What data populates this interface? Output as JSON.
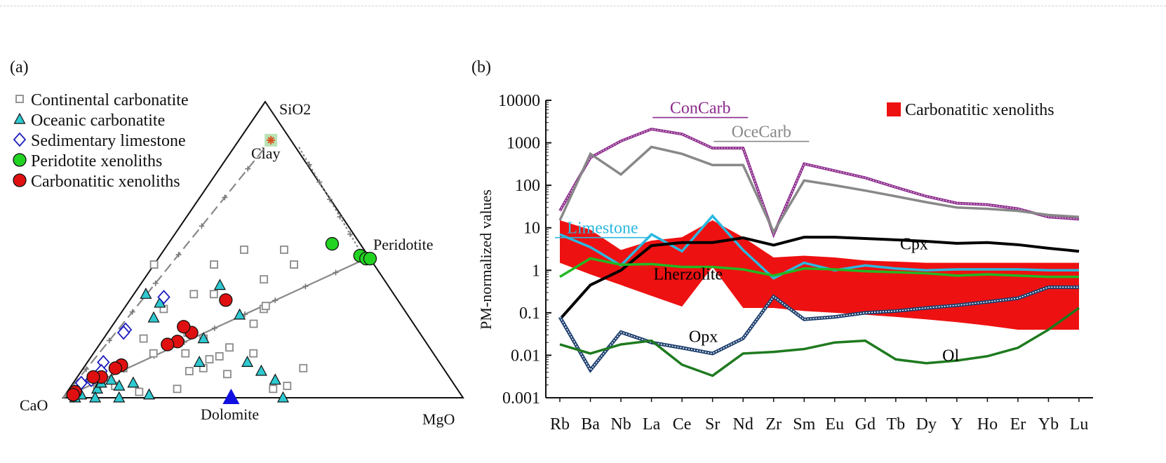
{
  "chart_data": [
    {
      "type": "scatter",
      "panel_label": "(a)",
      "apexes": {
        "top": "SiO2",
        "left": "CaO",
        "right": "MgO"
      },
      "vertex_labels": {
        "clay": "Clay",
        "peridotite": "Peridotite",
        "dolomite": "Dolomite"
      },
      "legend": [
        {
          "label": "Continental carbonatite",
          "marker": "square-open",
          "color": "#8a8a8a"
        },
        {
          "label": "Oceanic carbonatite",
          "marker": "triangle",
          "color": "#2ec9d1"
        },
        {
          "label": "Sedimentary limestone",
          "marker": "diamond-open",
          "color": "#1f1fbf"
        },
        {
          "label": "Peridotite xenoliths",
          "marker": "circle",
          "color": "#22d322"
        },
        {
          "label": "Carbonatitic xenoliths",
          "marker": "circle",
          "color": "#e01010"
        }
      ],
      "legend_position": "top-left",
      "series": [
        {
          "name": "Continental carbonatite",
          "points": [
            [
              0.55,
              0.45,
              0.0
            ],
            [
              0.4,
              0.45,
              0.15
            ],
            [
              0.3,
              0.5,
              0.2
            ],
            [
              0.2,
              0.45,
              0.35
            ],
            [
              0.2,
              0.5,
              0.3
            ],
            [
              0.3,
              0.4,
              0.3
            ],
            [
              0.45,
              0.35,
              0.2
            ],
            [
              0.4,
              0.25,
              0.35
            ],
            [
              0.7,
              0.15,
              0.15
            ],
            [
              0.7,
              0.2,
              0.1
            ],
            [
              0.5,
              0.17,
              0.33
            ],
            [
              0.55,
              0.2,
              0.25
            ],
            [
              0.58,
              0.22,
              0.2
            ],
            [
              0.35,
              0.1,
              0.55
            ],
            [
              0.6,
              0.1,
              0.3
            ],
            [
              0.64,
              0.09,
              0.27
            ],
            [
              0.57,
              0.13,
              0.3
            ],
            [
              0.54,
              0.14,
              0.32
            ],
            [
              0.62,
              0.15,
              0.23
            ],
            [
              0.45,
              0.15,
              0.4
            ],
            [
              0.46,
              0.03,
              0.51
            ],
            [
              0.42,
              0.04,
              0.54
            ],
            [
              0.55,
              0.08,
              0.37
            ],
            [
              0.7,
              0.03,
              0.27
            ],
            [
              0.8,
              0.02,
              0.18
            ],
            [
              0.85,
              0.04,
              0.11
            ],
            [
              0.88,
              0.05,
              0.07
            ],
            [
              0.9,
              0.03,
              0.07
            ],
            [
              0.8,
              0.1,
              0.1
            ],
            [
              0.6,
              0.3,
              0.1
            ],
            [
              0.5,
              0.35,
              0.15
            ],
            [
              0.35,
              0.3,
              0.35
            ],
            [
              0.34,
              0.31,
              0.35
            ]
          ]
        },
        {
          "name": "Oceanic carbonatite",
          "points": [
            [
              0.62,
              0.35,
              0.03
            ],
            [
              0.6,
              0.32,
              0.08
            ],
            [
              0.64,
              0.27,
              0.09
            ],
            [
              0.55,
              0.2,
              0.25
            ],
            [
              0.42,
              0.38,
              0.2
            ],
            [
              0.42,
              0.28,
              0.3
            ],
            [
              0.6,
              0.12,
              0.28
            ],
            [
              0.48,
              0.12,
              0.4
            ],
            [
              0.46,
              0.09,
              0.45
            ],
            [
              0.44,
              0.06,
              0.5
            ],
            [
              0.45,
              0.0,
              0.55
            ],
            [
              0.9,
              0.03,
              0.07
            ],
            [
              0.88,
              0.05,
              0.07
            ],
            [
              0.85,
              0.06,
              0.09
            ],
            [
              0.92,
              0.0,
              0.08
            ],
            [
              0.78,
              0.01,
              0.21
            ],
            [
              0.97,
              0.0,
              0.03
            ],
            [
              0.95,
              0.01,
              0.04
            ],
            [
              0.86,
              0.0,
              0.14
            ],
            [
              0.84,
              0.04,
              0.12
            ],
            [
              0.8,
              0.05,
              0.15
            ]
          ]
        },
        {
          "name": "Sedimentary limestone",
          "points": [
            [
              0.58,
              0.34,
              0.08
            ],
            [
              0.73,
              0.23,
              0.04
            ],
            [
              0.74,
              0.22,
              0.04
            ],
            [
              0.84,
              0.12,
              0.04
            ],
            [
              0.9,
              0.06,
              0.04
            ],
            [
              0.93,
              0.05,
              0.02
            ],
            [
              0.86,
              0.09,
              0.05
            ]
          ]
        },
        {
          "name": "Peridotite xenoliths",
          "points": [
            [
              0.07,
              0.52,
              0.41
            ],
            [
              0.02,
              0.48,
              0.5
            ],
            [
              0.01,
              0.47,
              0.52
            ],
            [
              0.0,
              0.47,
              0.53
            ]
          ]
        },
        {
          "name": "Carbonatitic xenoliths",
          "points": [
            [
              0.43,
              0.33,
              0.24
            ],
            [
              0.57,
              0.22,
              0.21
            ],
            [
              0.58,
              0.24,
              0.18
            ],
            [
              0.62,
              0.19,
              0.19
            ],
            [
              0.65,
              0.18,
              0.17
            ],
            [
              0.8,
              0.11,
              0.09
            ],
            [
              0.82,
              0.1,
              0.08
            ],
            [
              0.87,
              0.07,
              0.06
            ],
            [
              0.89,
              0.07,
              0.04
            ],
            [
              0.96,
              0.02,
              0.02
            ],
            [
              0.97,
              0.01,
              0.02
            ]
          ]
        },
        {
          "name": "Dolomite",
          "points": [
            [
              0.58,
              0.0,
              0.42
            ]
          ]
        },
        {
          "name": "Clay",
          "points": [
            [
              0.05,
              0.87,
              0.08
            ]
          ]
        }
      ]
    },
    {
      "type": "line",
      "panel_label": "(b)",
      "ylabel": "PM-normalized values",
      "yscale": "log",
      "ylim": [
        0.001,
        10000
      ],
      "yticks": [
        "0.001",
        "0.01",
        "0.1",
        "1",
        "10",
        "100",
        "1000",
        "10000"
      ],
      "categories": [
        "Rb",
        "Ba",
        "Nb",
        "La",
        "Ce",
        "Sr",
        "Nd",
        "Zr",
        "Sm",
        "Eu",
        "Gd",
        "Tb",
        "Dy",
        "Y",
        "Ho",
        "Er",
        "Yb",
        "Lu"
      ],
      "legend": [
        {
          "label": "Carbonatitic xenoliths",
          "color": "#ee1111"
        }
      ],
      "legend_position": "top-right",
      "band": {
        "name": "Carbonatitic xenoliths",
        "color": "#ee1111",
        "upper": [
          15,
          9,
          3,
          5,
          6,
          15,
          6,
          2,
          2.2,
          2,
          1.7,
          1.6,
          1.5,
          1.5,
          1.5,
          1.5,
          1.5,
          1.5
        ],
        "lower": [
          1.5,
          0.8,
          0.45,
          0.25,
          0.14,
          1.2,
          0.13,
          0.13,
          0.11,
          0.1,
          0.09,
          0.08,
          0.07,
          0.06,
          0.05,
          0.04,
          0.04,
          0.04
        ]
      },
      "series": [
        {
          "name": "ConCarb",
          "label": "ConCarb",
          "color": "#8b2b8b",
          "values": [
            25,
            450,
            1100,
            2100,
            1600,
            750,
            750,
            7,
            320,
            220,
            150,
            90,
            55,
            38,
            35,
            28,
            18,
            16
          ]
        },
        {
          "name": "OceCarb",
          "label": "OceCarb",
          "color": "#888888",
          "values": [
            15,
            550,
            180,
            800,
            550,
            300,
            300,
            8,
            130,
            100,
            75,
            55,
            40,
            30,
            28,
            25,
            20,
            18
          ]
        },
        {
          "name": "Limestone",
          "label": "Limestone",
          "color": "#2bb8e0",
          "values": [
            7,
            3.5,
            1.3,
            7,
            2.8,
            19,
            3,
            0.65,
            1.5,
            1.0,
            1.3,
            1.1,
            1.0,
            1.05,
            1.05,
            1.05,
            1.0,
            1.0
          ]
        },
        {
          "name": "Cpx",
          "label": "Cpx",
          "color": "#000000",
          "values": [
            0.07,
            0.45,
            1.0,
            3.8,
            4.5,
            4.5,
            5.8,
            3.9,
            6.0,
            6.0,
            5.6,
            5.2,
            4.8,
            4.3,
            4.5,
            4.0,
            3.3,
            2.8
          ]
        },
        {
          "name": "Lherzolite",
          "label": "Lherzolite",
          "color": "#22b822",
          "values": [
            0.7,
            1.9,
            1.35,
            1.4,
            1.2,
            1.2,
            1.05,
            0.75,
            1.1,
            1.05,
            0.95,
            0.9,
            0.85,
            0.75,
            0.8,
            0.75,
            0.7,
            0.7
          ]
        },
        {
          "name": "Opx",
          "label": "Opx",
          "color": "#1d3f6e",
          "values": [
            0.08,
            0.0045,
            0.035,
            0.02,
            0.015,
            0.011,
            0.025,
            0.24,
            0.07,
            0.08,
            0.1,
            0.11,
            0.13,
            0.15,
            0.18,
            0.22,
            0.4,
            0.4
          ]
        },
        {
          "name": "Ol",
          "label": "Ol",
          "color": "#1e7a1e",
          "values": [
            0.018,
            0.011,
            0.018,
            0.022,
            0.006,
            0.0033,
            0.011,
            0.012,
            0.014,
            0.02,
            0.022,
            0.008,
            0.0065,
            0.0075,
            0.0095,
            0.015,
            0.04,
            0.13
          ]
        }
      ]
    }
  ]
}
